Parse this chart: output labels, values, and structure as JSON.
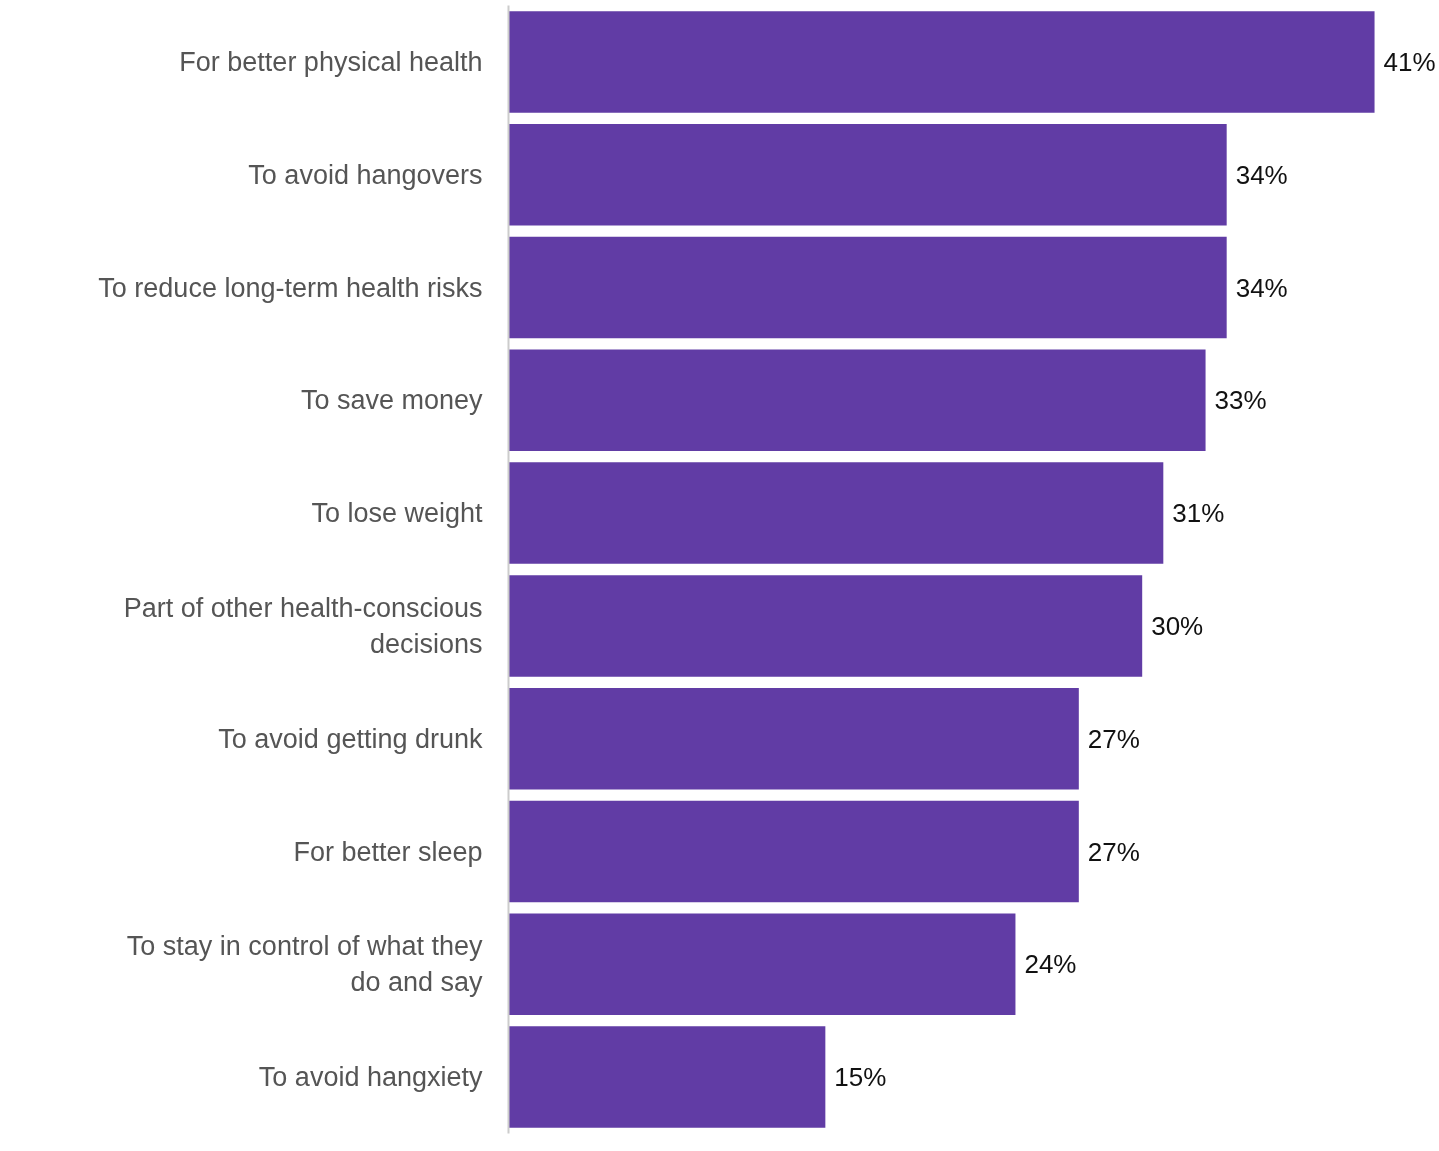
{
  "chart_data": {
    "type": "bar",
    "orientation": "horizontal",
    "categories": [
      "For better physical health",
      "To avoid hangovers",
      "To reduce long-term health risks",
      "To save money",
      "To lose weight",
      "Part of other health-conscious\ndecisions",
      "To avoid getting drunk",
      "For better sleep",
      "To stay in control of what they\ndo and say",
      "To avoid hangxiety"
    ],
    "values": [
      41,
      34,
      34,
      33,
      31,
      30,
      27,
      27,
      24,
      15
    ],
    "value_labels": [
      "41%",
      "34%",
      "34%",
      "33%",
      "31%",
      "30%",
      "27%",
      "27%",
      "24%",
      "15%"
    ],
    "color": "#613ca5"
  }
}
